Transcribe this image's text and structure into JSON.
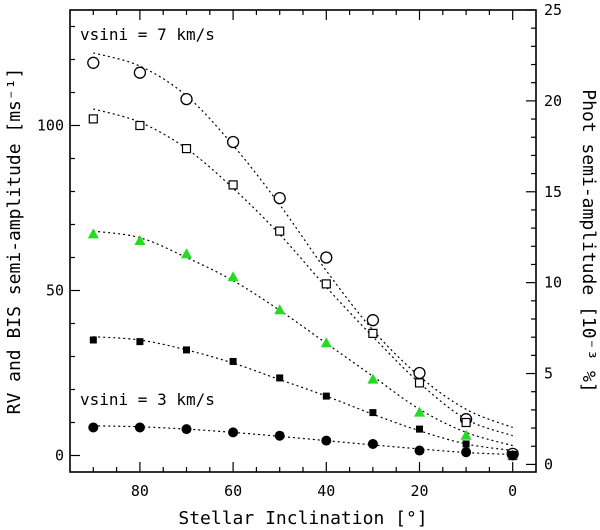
{
  "chart_data": {
    "type": "scatter",
    "xlabel": "Stellar Inclination [°]",
    "ylabel_left": "RV and BIS semi-amplitude [ms⁻¹]",
    "ylabel_right": "Phot semi-amplitude [10⁻³ %]",
    "xlim": [
      95,
      -5
    ],
    "ylim_left": [
      -5,
      135
    ],
    "ylim_right": [
      -0.417,
      25.0
    ],
    "x_ticks": [
      80,
      60,
      40,
      20,
      0
    ],
    "y_left_ticks": [
      0,
      50,
      100
    ],
    "y_right_ticks": [
      0,
      5,
      10,
      15,
      20,
      25
    ],
    "annotations": [
      "vsini = 7 km/s",
      "vsini = 3 km/s"
    ],
    "series": [
      {
        "name": "open circles",
        "marker": "open-circle",
        "color": "#000000",
        "x": [
          90,
          80,
          70,
          60,
          50,
          40,
          30,
          20,
          10,
          0
        ],
        "y": [
          119,
          116,
          108,
          95,
          78,
          60,
          41,
          25,
          11,
          0.5
        ],
        "fit": [
          122,
          118,
          109,
          94,
          76,
          56,
          38,
          24,
          14,
          8.5
        ]
      },
      {
        "name": "open squares",
        "marker": "open-square",
        "color": "#000000",
        "x": [
          90,
          80,
          70,
          60,
          50,
          40,
          30,
          20,
          10,
          0
        ],
        "y": [
          102,
          100,
          93,
          82,
          68,
          52,
          37,
          22,
          10,
          0
        ],
        "fit": [
          105,
          101,
          93,
          81,
          67,
          51,
          36,
          22,
          11,
          6
        ]
      },
      {
        "name": "green triangles",
        "marker": "filled-triangle",
        "color": "#22dd22",
        "x": [
          90,
          80,
          70,
          60,
          50,
          40,
          30,
          20,
          10,
          0
        ],
        "y": [
          67,
          65,
          61,
          54,
          44,
          34,
          23,
          13,
          6,
          0
        ],
        "fit": [
          68,
          66,
          60,
          53,
          44,
          34,
          24,
          14,
          7,
          3
        ]
      },
      {
        "name": "filled squares",
        "marker": "filled-square",
        "color": "#000000",
        "x": [
          90,
          80,
          70,
          60,
          50,
          40,
          30,
          20,
          10,
          0
        ],
        "y": [
          35,
          34.5,
          32,
          28.5,
          23.5,
          18,
          13,
          8,
          3.5,
          0
        ],
        "fit": [
          36,
          35,
          32,
          28,
          23,
          18,
          12.5,
          7.5,
          3.5,
          1.5
        ]
      },
      {
        "name": "filled circles",
        "marker": "filled-circle",
        "color": "#000000",
        "x": [
          90,
          80,
          70,
          60,
          50,
          40,
          30,
          20,
          10,
          0
        ],
        "y": [
          8.5,
          8.5,
          8,
          7,
          6,
          4.5,
          3.5,
          1.5,
          1,
          0
        ],
        "fit": [
          9,
          8.7,
          8,
          7,
          5.8,
          4.5,
          3.2,
          2,
          0.9,
          0.3
        ]
      }
    ]
  }
}
